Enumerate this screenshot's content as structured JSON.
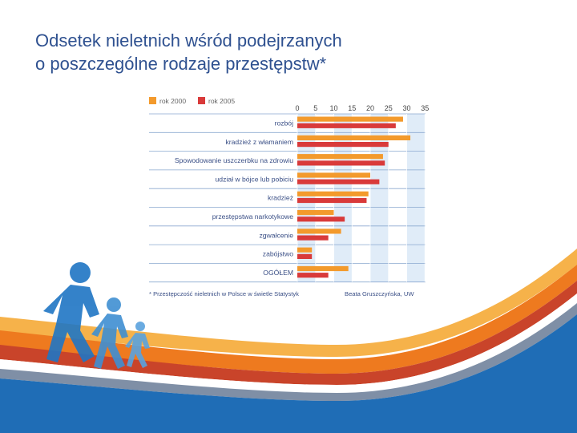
{
  "slide": {
    "title_line1": "Odsetek nieletnich wśród podejrzanych",
    "title_line2": "o poszczególne rodzaje przestępstw*"
  },
  "colors": {
    "title": "#2f5190",
    "series_2000": "#f39a2c",
    "series_2005": "#d93a3a",
    "label": "#3a4f86",
    "band": "#d6e6f5"
  },
  "chart_data": {
    "type": "bar",
    "orientation": "horizontal",
    "categories": [
      "rozbój",
      "kradzież z włamaniem",
      "Spowodowanie uszczerbku na zdrowiu",
      "udział w bójce lub pobiciu",
      "kradzież",
      "przestępstwa narkotykowe",
      "zgwałcenie",
      "zabójstwo",
      "OGÓŁEM"
    ],
    "series": [
      {
        "name": "rok 2000",
        "values": [
          29,
          31,
          23.5,
          20,
          19.5,
          10,
          12,
          4,
          14
        ]
      },
      {
        "name": "rok 2005",
        "values": [
          27,
          25,
          24,
          22.5,
          19,
          13,
          8.5,
          4,
          8.5
        ]
      }
    ],
    "xticks": [
      "0",
      "5",
      "10",
      "15",
      "20",
      "25",
      "30",
      "35"
    ],
    "xlim": [
      0,
      35
    ],
    "legend_position": "top-left",
    "footnote_left": "* Przestępczość nieletnich w Polsce w świetle Statystyk",
    "footnote_right": "Beata Gruszczyńska, UW"
  }
}
